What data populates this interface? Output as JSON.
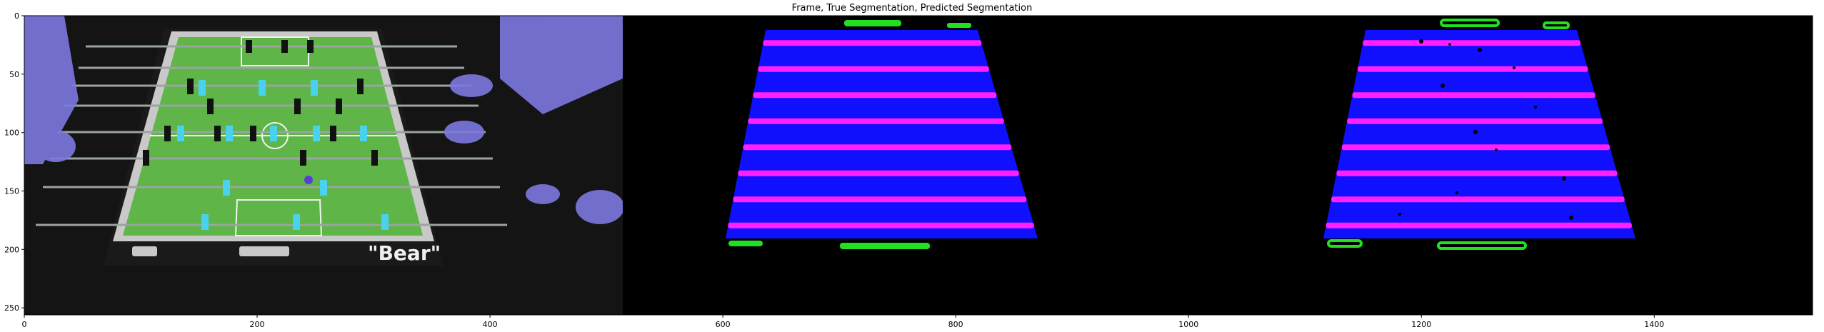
{
  "chart_data": {
    "type": "image",
    "title": "Frame, True Segmentation, Predicted Segmentation",
    "x_ticks": [
      0,
      200,
      400,
      600,
      800,
      1000,
      1200,
      1400
    ],
    "y_ticks": [
      0,
      50,
      100,
      150,
      200,
      250
    ],
    "xlim": [
      0,
      1536
    ],
    "ylim": [
      256,
      0
    ],
    "panels": [
      "Frame",
      "True Segmentation",
      "Predicted Segmentation"
    ],
    "frame_text": "\"Bear\"",
    "colors": {
      "background": "#000000",
      "field": "#1010ff",
      "rods": "#ff1fff",
      "goals": "#20e020",
      "turf": "#5fb548",
      "team_a": "#48d2ee",
      "team_b": "#111111",
      "hands": "#7d78e0"
    }
  }
}
